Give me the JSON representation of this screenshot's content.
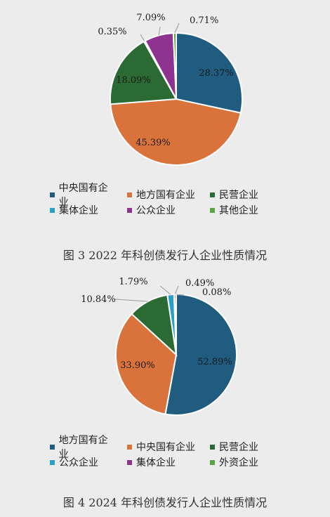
{
  "chart_data": [
    {
      "type": "pie",
      "title": "图 3 2022 年科创债发行人企业性质情况",
      "slices": [
        {
          "name": "中央国有企业",
          "value": 28.37,
          "label": "28.37%",
          "color": "#1f5c80"
        },
        {
          "name": "地方国有企业",
          "value": 45.39,
          "label": "45.39%",
          "color": "#d9733b"
        },
        {
          "name": "民营企业",
          "value": 18.09,
          "label": "18.09%",
          "color": "#2b6b33"
        },
        {
          "name": "集体企业",
          "value": 0.35,
          "label": "0.35%",
          "color": "#2aa0c9"
        },
        {
          "name": "公众企业",
          "value": 7.09,
          "label": "7.09%",
          "color": "#8e3490"
        },
        {
          "name": "其他企业",
          "value": 0.71,
          "label": "0.71%",
          "color": "#5aa644"
        }
      ],
      "legend": [
        [
          "中央国有企业",
          "地方国有企业",
          "民营企业"
        ],
        [
          "集体企业",
          "公众企业",
          "其他企业"
        ]
      ]
    },
    {
      "type": "pie",
      "title": "图 4 2024 年科创债发行人企业性质情况",
      "slices": [
        {
          "name": "地方国有企业",
          "value": 52.89,
          "label": "52.89%",
          "color": "#1f5c80"
        },
        {
          "name": "中央国有企业",
          "value": 33.9,
          "label": "33.90%",
          "color": "#d9733b"
        },
        {
          "name": "民营企业",
          "value": 10.84,
          "label": "10.84%",
          "color": "#2b6b33"
        },
        {
          "name": "公众企业",
          "value": 1.79,
          "label": "1.79%",
          "color": "#2aa0c9"
        },
        {
          "name": "集体企业",
          "value": 0.49,
          "label": "0.49%",
          "color": "#8e3490"
        },
        {
          "name": "外资企业",
          "value": 0.08,
          "label": "0.08%",
          "color": "#5aa644"
        }
      ],
      "legend": [
        [
          "地方国有企业",
          "中央国有企业",
          "民营企业"
        ],
        [
          "公众企业",
          "集体企业",
          "外资企业"
        ]
      ]
    }
  ]
}
